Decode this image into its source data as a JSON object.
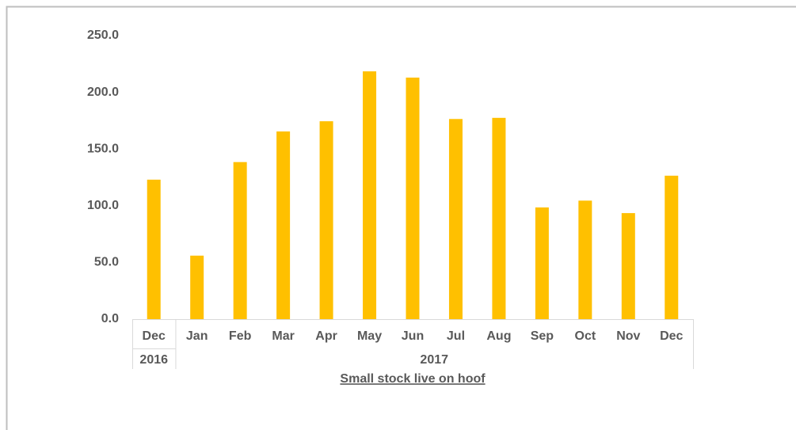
{
  "chart_data": {
    "type": "bar",
    "x_title": "Small stock live on hoof",
    "groups": [
      {
        "label": "2016",
        "categories": [
          "Dec"
        ]
      },
      {
        "label": "2017",
        "categories": [
          "Jan",
          "Feb",
          "Mar",
          "Apr",
          "May",
          "Jun",
          "Jul",
          "Aug",
          "Sep",
          "Oct",
          "Nov",
          "Dec"
        ]
      }
    ],
    "values": [
      123,
      56,
      138.5,
      165.5,
      174.5,
      218.5,
      213,
      176.5,
      177.5,
      98.5,
      104.5,
      93.5,
      126.5
    ],
    "color": "#ffc000",
    "ylim": [
      0,
      250
    ],
    "yticks": [
      {
        "value": 0,
        "label": "0.0"
      },
      {
        "value": 50,
        "label": "50.0"
      },
      {
        "value": 100,
        "label": "100.0"
      },
      {
        "value": 150,
        "label": "150.0"
      },
      {
        "value": 200,
        "label": "200.0"
      },
      {
        "value": 250,
        "label": "250.0"
      }
    ],
    "grid": false
  }
}
